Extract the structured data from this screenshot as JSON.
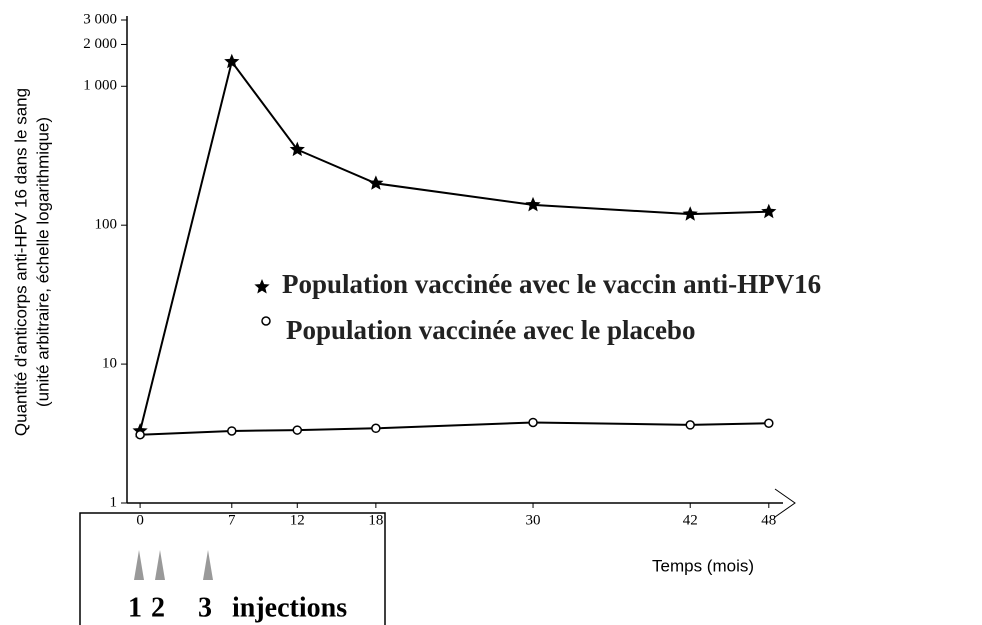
{
  "chart_data": {
    "type": "line",
    "ylabel": [
      "Quantité d'anticorps anti-HPV 16 dans le sang",
      "(unité arbitraire, échelle logarithmique)"
    ],
    "xlabel": "Temps (mois)",
    "x": [
      0,
      7,
      12,
      18,
      30,
      42,
      48
    ],
    "series": [
      {
        "name": "Population vaccinée avec le vaccin anti-HPV16",
        "color": "#000000",
        "marker": "star",
        "values": [
          3.3,
          1500,
          350,
          200,
          140,
          120,
          125
        ]
      },
      {
        "name": "Population vaccinée avec le placebo",
        "color": "#000000",
        "marker": "circle",
        "values": [
          3.1,
          3.3,
          3.35,
          3.45,
          3.8,
          3.65,
          3.75
        ]
      }
    ],
    "xlim": [
      -1,
      50
    ],
    "xticks": [
      0,
      7,
      12,
      18,
      30,
      42,
      48
    ],
    "ylim": [
      1,
      3000
    ],
    "log_y": true,
    "yticks": [
      1,
      10,
      100,
      {
        "value": 1000,
        "label": "1 000"
      },
      {
        "value": 2000,
        "label": "2 000"
      },
      {
        "value": 3000,
        "label": "3 000"
      }
    ],
    "injections": {
      "numbers": [
        "1",
        "2",
        "3"
      ],
      "label": "injections"
    }
  }
}
